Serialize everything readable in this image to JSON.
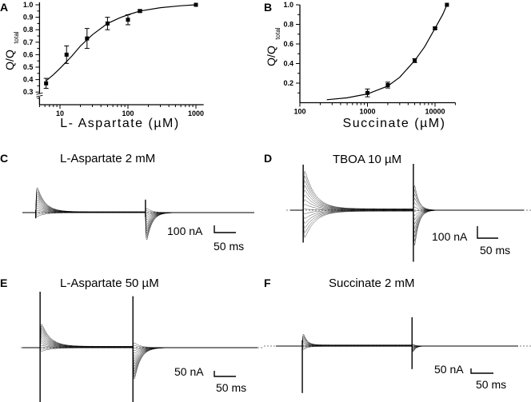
{
  "chart_data": [
    {
      "panel": "A",
      "type": "scatter",
      "xlabel": "L- Aspartate (µM)",
      "ylabel": "Q/Q",
      "ylabel_sub": "total",
      "xscale": "log",
      "xlim": [
        5,
        1300
      ],
      "ylim": [
        0.2,
        1.02
      ],
      "y_axis_break": 0.3,
      "xticks": [
        10,
        100,
        1000
      ],
      "xtick_labels": [
        "10",
        "100",
        "1000"
      ],
      "yticks": [
        0.3,
        0.4,
        0.5,
        0.6,
        0.7,
        0.8,
        0.9,
        1.0
      ],
      "ytick_labels": [
        "0.3",
        "0.4",
        "0.5",
        "0.6",
        "0.7",
        "0.8",
        "0.9",
        "1.0"
      ],
      "points": [
        {
          "x": 6.25,
          "y": 0.37,
          "err": 0.04
        },
        {
          "x": 12.5,
          "y": 0.6,
          "err": 0.07
        },
        {
          "x": 25,
          "y": 0.73,
          "err": 0.08
        },
        {
          "x": 50,
          "y": 0.85,
          "err": 0.05
        },
        {
          "x": 100,
          "y": 0.88,
          "err": 0.04
        },
        {
          "x": 150,
          "y": 0.95,
          "err": 0.01
        },
        {
          "x": 1000,
          "y": 1.0,
          "err": 0
        }
      ],
      "fit": [
        [
          6.25,
          0.39
        ],
        [
          8,
          0.44
        ],
        [
          10,
          0.49
        ],
        [
          15,
          0.59
        ],
        [
          20,
          0.67
        ],
        [
          30,
          0.76
        ],
        [
          50,
          0.85
        ],
        [
          75,
          0.895
        ],
        [
          100,
          0.92
        ],
        [
          150,
          0.95
        ],
        [
          300,
          0.977
        ],
        [
          600,
          0.992
        ],
        [
          1000,
          1.0
        ]
      ],
      "grid": false
    },
    {
      "panel": "B",
      "type": "scatter",
      "xlabel": "Succinate (µM)",
      "ylabel": "Q/Q",
      "ylabel_sub": "total",
      "xscale": "log",
      "xlim": [
        100,
        20000
      ],
      "ylim": [
        0,
        1.0
      ],
      "xticks": [
        100,
        1000,
        10000
      ],
      "xtick_labels": [
        "100",
        "1000",
        "10000"
      ],
      "yticks": [
        0.2,
        0.4,
        0.6,
        0.8,
        1.0
      ],
      "ytick_labels": [
        "0.2",
        "0.4",
        "0.6",
        "0.8",
        "1.0"
      ],
      "points": [
        {
          "x": 1000,
          "y": 0.1,
          "err": 0.04
        },
        {
          "x": 2000,
          "y": 0.18,
          "err": 0.03
        },
        {
          "x": 5000,
          "y": 0.43,
          "err": 0.02
        },
        {
          "x": 10000,
          "y": 0.76,
          "err": 0.01
        },
        {
          "x": 15000,
          "y": 1.0,
          "err": 0
        }
      ],
      "fit": [
        [
          250,
          0.03
        ],
        [
          500,
          0.05
        ],
        [
          1000,
          0.09
        ],
        [
          2000,
          0.17
        ],
        [
          3000,
          0.26
        ],
        [
          5000,
          0.43
        ],
        [
          7000,
          0.57
        ],
        [
          10000,
          0.76
        ],
        [
          13000,
          0.9
        ],
        [
          15000,
          1.0
        ]
      ],
      "grid": false
    },
    {
      "panel": "C",
      "type": "line",
      "title": "L-Aspartate 2 mM",
      "scale_y_label": "100 nA",
      "scale_x_label": "50 ms",
      "duration_ms": 537,
      "pulse_on_ms": 31,
      "pulse_off_ms": 285,
      "on_peak_nA": 430,
      "on_tau_ms": 18,
      "off_peak_nA": -530,
      "off_tau_ms": 12,
      "negative_fraction": 0.15,
      "on_spike_nA": [
        40,
        -80
      ],
      "off_spike_nA": [
        180,
        -60
      ],
      "n_traces": 15
    },
    {
      "panel": "D",
      "type": "line",
      "title": "TBOA 10 µM",
      "scale_y_label": "100 nA",
      "scale_x_label": "50 ms",
      "duration_ms": 561,
      "pulse_on_ms": 31,
      "pulse_off_ms": 296,
      "on_peak_nA": 380,
      "on_tau_ms": 25,
      "off_peak_nA": -430,
      "off_tau_ms": 10,
      "negative_fraction": 0.7,
      "on_spike_nA": [
        380,
        -270
      ],
      "off_spike_nA": [
        400,
        -430
      ],
      "n_traces": 15
    },
    {
      "panel": "E",
      "type": "line",
      "title": "L-Aspartate 50 µM",
      "scale_y_label": "50 nA",
      "scale_x_label": "50 ms",
      "duration_ms": 544,
      "pulse_on_ms": 41,
      "pulse_off_ms": 256,
      "on_peak_nA": 250,
      "on_tau_ms": 20,
      "off_peak_nA": -380,
      "off_tau_ms": 14,
      "negative_fraction": 0.15,
      "on_spike_nA": [
        500,
        -500
      ],
      "off_spike_nA": [
        460,
        -500
      ],
      "n_traces": 15
    },
    {
      "panel": "F",
      "type": "line",
      "title": "Succinate 2 mM",
      "scale_y_label": "50 nA",
      "scale_x_label": "50 ms",
      "duration_ms": 541,
      "pulse_on_ms": 59,
      "pulse_off_ms": 304,
      "on_peak_nA": 175,
      "on_tau_ms": 8,
      "off_peak_nA": -100,
      "off_tau_ms": 6,
      "negative_fraction": 0.3,
      "on_spike_nA": [
        60,
        -490
      ],
      "off_spike_nA": [
        300,
        -240
      ],
      "n_traces": 12
    }
  ]
}
